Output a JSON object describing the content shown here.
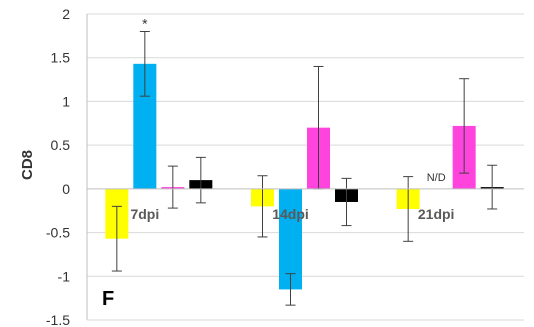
{
  "chart_data": {
    "type": "bar",
    "ylabel": "CD8",
    "panel_label": "F",
    "ylim": [
      -1.5,
      2
    ],
    "yticks": [
      "2",
      "1.5",
      "1",
      "0.5",
      "0",
      "-0.5",
      "-1",
      "-1.5"
    ],
    "ytick_values": [
      2,
      1.5,
      1,
      0.5,
      0,
      -0.5,
      -1,
      -1.5
    ],
    "grid": true,
    "legend": "none",
    "categories": [
      "7dpi",
      "14dpi",
      "21dpi"
    ],
    "series": [
      {
        "color": "#ffff00",
        "values": [
          -0.57,
          -0.2,
          -0.23
        ],
        "error": [
          0.37,
          0.35,
          0.37
        ]
      },
      {
        "color": "#00b0f0",
        "values": [
          1.43,
          -1.15,
          null
        ],
        "error": [
          0.37,
          0.18,
          null
        ]
      },
      {
        "color": "#ff44dd",
        "values": [
          0.02,
          0.7,
          0.72
        ],
        "error": [
          0.24,
          0.7,
          0.54
        ]
      },
      {
        "color": "#000000",
        "values": [
          0.1,
          -0.15,
          0.02
        ],
        "error": [
          0.26,
          0.27,
          0.25
        ]
      }
    ],
    "annotations": [
      {
        "text": "*",
        "category": 0,
        "series": 1,
        "position": "above-error"
      },
      {
        "text": "N/D",
        "category": 2,
        "series": 1,
        "position": "above-zero"
      }
    ]
  }
}
